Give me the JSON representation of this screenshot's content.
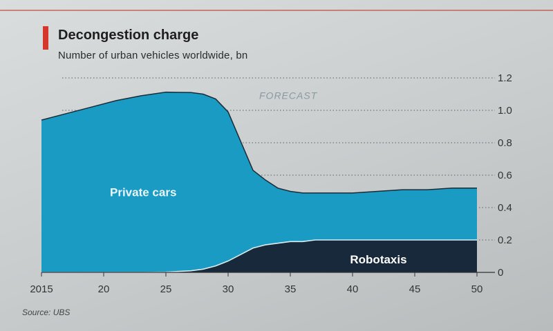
{
  "chart_data": {
    "type": "area",
    "title": "Decongestion charge",
    "subtitle": "Number of urban vehicles worldwide, bn",
    "source": "Source: UBS",
    "annotation": "FORECAST",
    "x_tick_labels": [
      "2015",
      "20",
      "25",
      "30",
      "35",
      "40",
      "45",
      "50"
    ],
    "x_tick_values": [
      2015,
      2020,
      2025,
      2030,
      2035,
      2040,
      2045,
      2050
    ],
    "y_tick_labels": [
      "0",
      "0.2",
      "0.4",
      "0.6",
      "0.8",
      "1.0",
      "1.2"
    ],
    "y_tick_values": [
      0,
      0.2,
      0.4,
      0.6,
      0.8,
      1.0,
      1.2
    ],
    "xlim": [
      2015,
      2050
    ],
    "ylim": [
      0,
      1.2
    ],
    "stacked": true,
    "grid": "dotted horizontal",
    "x": [
      2015,
      2017,
      2019,
      2021,
      2023,
      2025,
      2027,
      2028,
      2029,
      2030,
      2031,
      2032,
      2033,
      2034,
      2035,
      2036,
      2037,
      2038,
      2040,
      2042,
      2044,
      2046,
      2048,
      2050
    ],
    "series": [
      {
        "name": "Robotaxis",
        "color": "#17293a",
        "values": [
          0,
          0,
          0,
          0,
          0,
          0.002,
          0.01,
          0.02,
          0.04,
          0.07,
          0.11,
          0.15,
          0.17,
          0.18,
          0.19,
          0.19,
          0.2,
          0.2,
          0.2,
          0.2,
          0.2,
          0.2,
          0.2,
          0.2
        ]
      },
      {
        "name": "Private cars",
        "color": "#1a9bc4",
        "values": [
          0.94,
          0.98,
          1.02,
          1.06,
          1.09,
          1.11,
          1.1,
          1.08,
          1.03,
          0.92,
          0.7,
          0.48,
          0.4,
          0.34,
          0.31,
          0.3,
          0.29,
          0.29,
          0.29,
          0.3,
          0.31,
          0.31,
          0.32,
          0.32
        ]
      }
    ]
  }
}
